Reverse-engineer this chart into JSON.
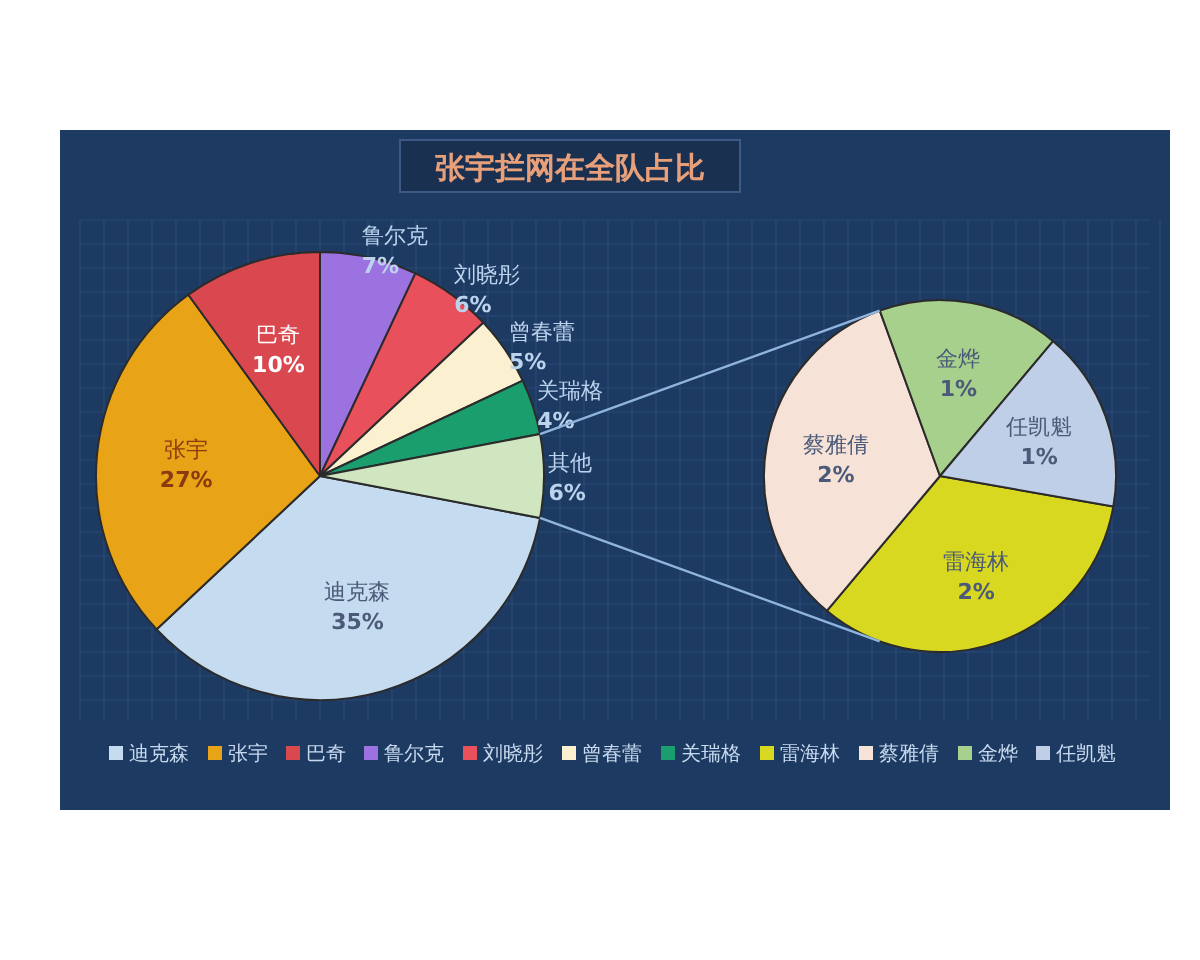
{
  "chart_data": [
    {
      "type": "pie",
      "title": "张宇拦网在全队占比",
      "categories": [
        "迪克森",
        "张宇",
        "巴奇",
        "鲁尔克",
        "刘晓彤",
        "曾春蕾",
        "关瑞格",
        "其他"
      ],
      "values": [
        35,
        27,
        10,
        7,
        6,
        5,
        4,
        6
      ],
      "colors": [
        "#c5dbef",
        "#e8a317",
        "#d9474f",
        "#9b72e0",
        "#e8505b",
        "#fbf0d0",
        "#1a9e6e",
        "#cfe6c0"
      ],
      "value_labels": [
        "35%",
        "27%",
        "10%",
        "7%",
        "6%",
        "5%",
        "4%",
        "6%"
      ],
      "legend": "bottom"
    },
    {
      "type": "pie",
      "categories": [
        "雷海林",
        "蔡雅倩",
        "金烨",
        "任凯魁"
      ],
      "values": [
        2,
        2,
        1,
        1
      ],
      "colors": [
        "#d8d820",
        "#f7e2d8",
        "#a8d08d",
        "#c0cfe8"
      ],
      "value_labels": [
        "2%",
        "2%",
        "1%",
        "1%"
      ],
      "legend": "bottom"
    }
  ]
}
